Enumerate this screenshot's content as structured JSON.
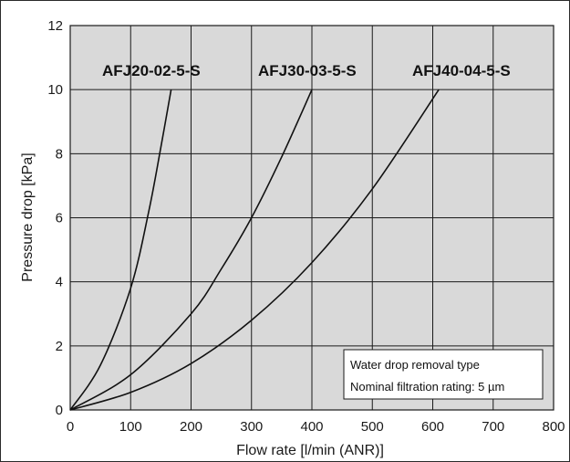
{
  "chart_data": {
    "type": "line",
    "xlabel": "Flow rate [l/min (ANR)]",
    "ylabel": "Pressure drop [kPa]",
    "xlim": [
      0,
      800
    ],
    "ylim": [
      0,
      12
    ],
    "xticks": [
      "0",
      "100",
      "200",
      "300",
      "400",
      "500",
      "600",
      "700",
      "800"
    ],
    "yticks": [
      "0",
      "2",
      "4",
      "6",
      "8",
      "10",
      "12"
    ],
    "grid": true,
    "series": [
      {
        "name": "AFJ20-02-5-S",
        "x": [
          0,
          50,
          100,
          130,
          150,
          167
        ],
        "y": [
          0,
          1.4,
          3.8,
          6.2,
          8.2,
          10.0
        ]
      },
      {
        "name": "AFJ30-03-5-S",
        "x": [
          0,
          100,
          200,
          250,
          300,
          350,
          400
        ],
        "y": [
          0,
          1.1,
          3.0,
          4.4,
          6.0,
          7.9,
          10.0
        ]
      },
      {
        "name": "AFJ40-04-5-S",
        "x": [
          0,
          100,
          200,
          300,
          400,
          500,
          610
        ],
        "y": [
          0,
          0.55,
          1.45,
          2.8,
          4.6,
          6.9,
          10.0
        ]
      }
    ],
    "annotation": [
      "Water drop removal type",
      "Nominal filtration rating: 5 µm"
    ]
  },
  "colors": {
    "plot_bg": "#d9d9d9",
    "grid": "#1a1a1a",
    "line": "#111111",
    "note_bg": "#ffffff"
  }
}
